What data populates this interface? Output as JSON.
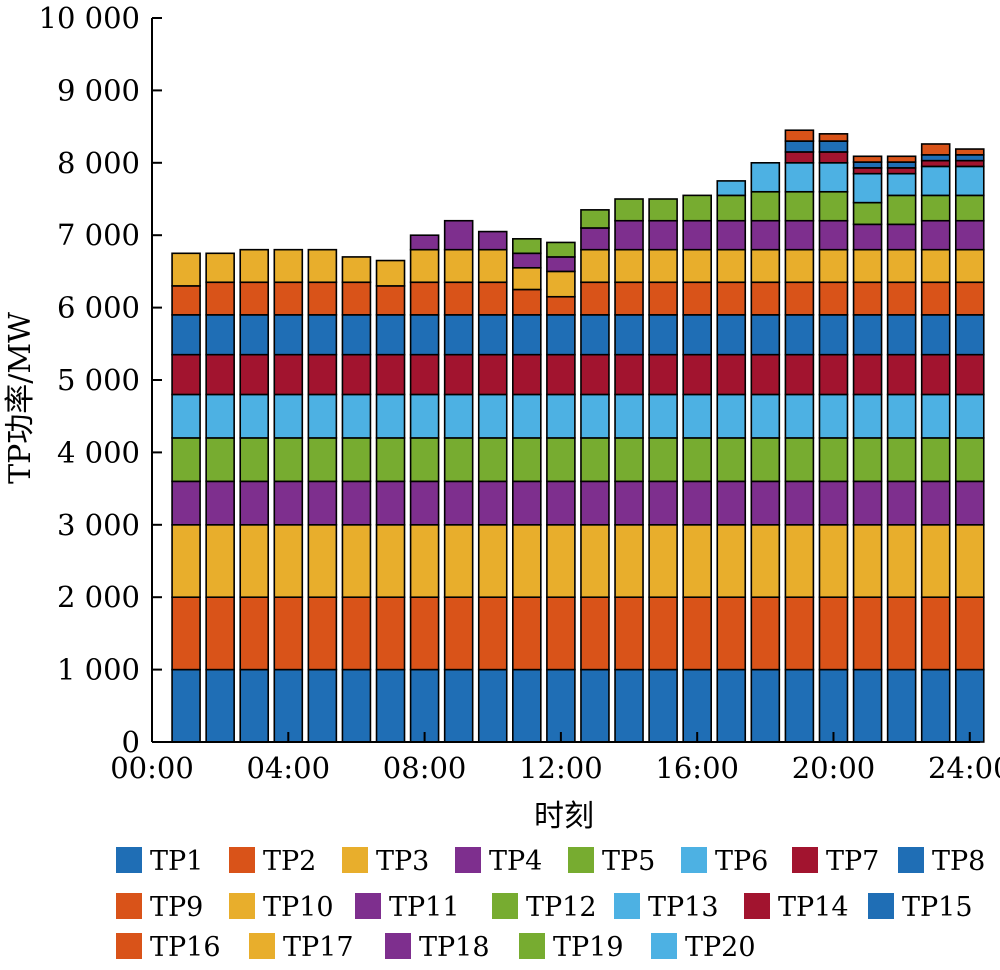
{
  "chart_data": {
    "type": "bar",
    "stacked": true,
    "xlabel": "时刻",
    "ylabel": "TP功率/MW",
    "ylim": [
      0,
      10000
    ],
    "yticks": [
      0,
      1000,
      2000,
      3000,
      4000,
      5000,
      6000,
      7000,
      8000,
      9000,
      10000
    ],
    "ytick_labels": [
      "0",
      "1 000",
      "2 000",
      "3 000",
      "4 000",
      "5 000",
      "6 000",
      "7 000",
      "8 000",
      "9 000",
      "10 000"
    ],
    "xlim": [
      0,
      24.3
    ],
    "xticks": [
      0,
      4,
      8,
      12,
      16,
      20,
      24
    ],
    "xtick_labels": [
      "00:00",
      "04:00",
      "08:00",
      "12:00",
      "16:00",
      "20:00",
      "24:00"
    ],
    "x_hours": [
      1,
      2,
      3,
      4,
      5,
      6,
      7,
      8,
      9,
      10,
      11,
      12,
      13,
      14,
      15,
      16,
      17,
      18,
      19,
      20,
      21,
      22,
      23,
      24
    ],
    "legend_position": "bottom",
    "series": [
      {
        "name": "TP1",
        "color": "#1f6eb5",
        "values": [
          1000,
          1000,
          1000,
          1000,
          1000,
          1000,
          1000,
          1000,
          1000,
          1000,
          1000,
          1000,
          1000,
          1000,
          1000,
          1000,
          1000,
          1000,
          1000,
          1000,
          1000,
          1000,
          1000,
          1000
        ]
      },
      {
        "name": "TP2",
        "color": "#d95319",
        "values": [
          1000,
          1000,
          1000,
          1000,
          1000,
          1000,
          1000,
          1000,
          1000,
          1000,
          1000,
          1000,
          1000,
          1000,
          1000,
          1000,
          1000,
          1000,
          1000,
          1000,
          1000,
          1000,
          1000,
          1000
        ]
      },
      {
        "name": "TP3",
        "color": "#e8ae2c",
        "values": [
          1000,
          1000,
          1000,
          1000,
          1000,
          1000,
          1000,
          1000,
          1000,
          1000,
          1000,
          1000,
          1000,
          1000,
          1000,
          1000,
          1000,
          1000,
          1000,
          1000,
          1000,
          1000,
          1000,
          1000
        ]
      },
      {
        "name": "TP4",
        "color": "#7e2f8e",
        "values": [
          600,
          600,
          600,
          600,
          600,
          600,
          600,
          600,
          600,
          600,
          600,
          600,
          600,
          600,
          600,
          600,
          600,
          600,
          600,
          600,
          600,
          600,
          600,
          600
        ]
      },
      {
        "name": "TP5",
        "color": "#77ac30",
        "values": [
          600,
          600,
          600,
          600,
          600,
          600,
          600,
          600,
          600,
          600,
          600,
          600,
          600,
          600,
          600,
          600,
          600,
          600,
          600,
          600,
          600,
          600,
          600,
          600
        ]
      },
      {
        "name": "TP6",
        "color": "#4db1e3",
        "values": [
          600,
          600,
          600,
          600,
          600,
          600,
          600,
          600,
          600,
          600,
          600,
          600,
          600,
          600,
          600,
          600,
          600,
          600,
          600,
          600,
          600,
          600,
          600,
          600
        ]
      },
      {
        "name": "TP7",
        "color": "#a2142f",
        "values": [
          550,
          550,
          550,
          550,
          550,
          550,
          550,
          550,
          550,
          550,
          550,
          550,
          550,
          550,
          550,
          550,
          550,
          550,
          550,
          550,
          550,
          550,
          550,
          550
        ]
      },
      {
        "name": "TP8",
        "color": "#1f6eb5",
        "values": [
          550,
          550,
          550,
          550,
          550,
          550,
          550,
          550,
          550,
          550,
          550,
          550,
          550,
          550,
          550,
          550,
          550,
          550,
          550,
          550,
          550,
          550,
          550,
          550
        ]
      },
      {
        "name": "TP9",
        "color": "#d95319",
        "values": [
          400,
          450,
          450,
          450,
          450,
          450,
          400,
          450,
          450,
          450,
          350,
          250,
          450,
          450,
          450,
          450,
          450,
          450,
          450,
          450,
          450,
          450,
          450,
          450
        ]
      },
      {
        "name": "TP10",
        "color": "#e8ae2c",
        "values": [
          450,
          400,
          450,
          450,
          450,
          350,
          350,
          450,
          450,
          450,
          300,
          350,
          450,
          450,
          450,
          450,
          450,
          450,
          450,
          450,
          450,
          450,
          450,
          450
        ]
      },
      {
        "name": "TP11",
        "color": "#7e2f8e",
        "values": [
          0,
          0,
          0,
          0,
          0,
          0,
          0,
          200,
          400,
          250,
          200,
          200,
          300,
          400,
          400,
          400,
          400,
          400,
          400,
          400,
          350,
          350,
          400,
          400
        ]
      },
      {
        "name": "TP12",
        "color": "#77ac30",
        "values": [
          0,
          0,
          0,
          0,
          0,
          0,
          0,
          0,
          0,
          0,
          200,
          200,
          250,
          300,
          300,
          350,
          350,
          400,
          400,
          400,
          300,
          400,
          350,
          350
        ]
      },
      {
        "name": "TP13",
        "color": "#4db1e3",
        "values": [
          0,
          0,
          0,
          0,
          0,
          0,
          0,
          0,
          0,
          0,
          0,
          0,
          0,
          0,
          0,
          0,
          200,
          400,
          400,
          400,
          400,
          300,
          400,
          400
        ]
      },
      {
        "name": "TP14",
        "color": "#a2142f",
        "values": [
          0,
          0,
          0,
          0,
          0,
          0,
          0,
          0,
          0,
          0,
          0,
          0,
          0,
          0,
          0,
          0,
          0,
          0,
          150,
          150,
          80,
          80,
          80,
          80
        ]
      },
      {
        "name": "TP15",
        "color": "#1f6eb5",
        "values": [
          0,
          0,
          0,
          0,
          0,
          0,
          0,
          0,
          0,
          0,
          0,
          0,
          0,
          0,
          0,
          0,
          0,
          0,
          150,
          150,
          80,
          80,
          80,
          80
        ]
      },
      {
        "name": "TP16",
        "color": "#d95319",
        "values": [
          0,
          0,
          0,
          0,
          0,
          0,
          0,
          0,
          0,
          0,
          0,
          0,
          0,
          0,
          0,
          0,
          0,
          0,
          150,
          100,
          80,
          80,
          150,
          80
        ]
      },
      {
        "name": "TP17",
        "color": "#e8ae2c",
        "values": [
          0,
          0,
          0,
          0,
          0,
          0,
          0,
          0,
          0,
          0,
          0,
          0,
          0,
          0,
          0,
          0,
          0,
          0,
          0,
          0,
          0,
          0,
          0,
          0
        ]
      },
      {
        "name": "TP18",
        "color": "#7e2f8e",
        "values": [
          0,
          0,
          0,
          0,
          0,
          0,
          0,
          0,
          0,
          0,
          0,
          0,
          0,
          0,
          0,
          0,
          0,
          0,
          0,
          0,
          0,
          0,
          0,
          0
        ]
      },
      {
        "name": "TP19",
        "color": "#77ac30",
        "values": [
          0,
          0,
          0,
          0,
          0,
          0,
          0,
          0,
          0,
          0,
          0,
          0,
          0,
          0,
          0,
          0,
          0,
          0,
          0,
          0,
          0,
          0,
          0,
          0
        ]
      },
      {
        "name": "TP20",
        "color": "#4db1e3",
        "values": [
          0,
          0,
          0,
          0,
          0,
          0,
          0,
          0,
          0,
          0,
          0,
          0,
          0,
          0,
          0,
          0,
          0,
          0,
          0,
          0,
          0,
          0,
          0,
          0
        ]
      }
    ]
  }
}
